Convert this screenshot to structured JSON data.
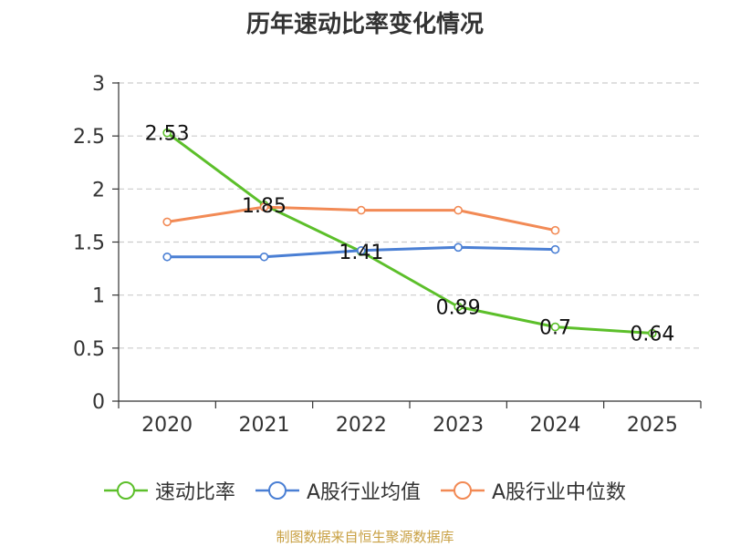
{
  "chart_data": {
    "type": "line",
    "title": "历年速动比率变化情况",
    "categories": [
      "2020",
      "2021",
      "2022",
      "2023",
      "2024",
      "2025"
    ],
    "ylim": [
      0,
      3
    ],
    "yticks": [
      0,
      0.5,
      1,
      1.5,
      2,
      2.5,
      3
    ],
    "ytick_labels": [
      "0",
      "0.5",
      "1",
      "1.5",
      "2",
      "2.5",
      "3"
    ],
    "grid": true,
    "legend_position": "bottom",
    "series": [
      {
        "name": "速动比率",
        "color": "#5cbf2a",
        "values": [
          2.53,
          1.85,
          1.41,
          0.89,
          0.7,
          0.64
        ],
        "labels": [
          "2.53",
          "1.85",
          "1.41",
          "0.89",
          "0.7",
          "0.64"
        ]
      },
      {
        "name": "A股行业均值",
        "color": "#4a7fd4",
        "values": [
          1.36,
          1.36,
          1.42,
          1.45,
          1.43,
          null
        ]
      },
      {
        "name": "A股行业中位数",
        "color": "#f28a55",
        "values": [
          1.69,
          1.83,
          1.8,
          1.8,
          1.61,
          null
        ]
      }
    ],
    "source": "制图数据来自恒生聚源数据库"
  }
}
